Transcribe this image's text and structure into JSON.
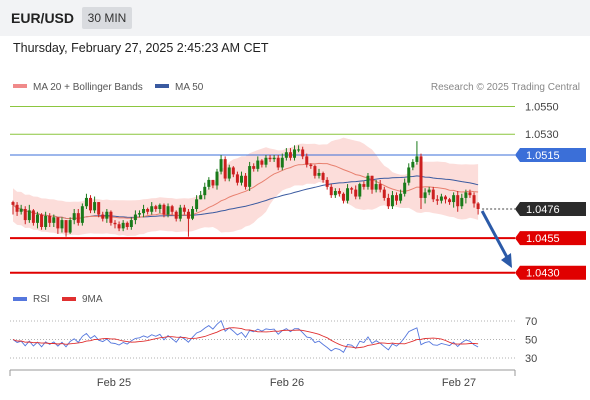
{
  "header": {
    "symbol": "EUR/USD",
    "timeframe": "30 MIN",
    "datetime": "Thursday, February 27, 2025 2:45:23 AM CET"
  },
  "legend": {
    "ma20_label": "MA 20 + Bollinger Bands",
    "ma50_label": "MA 50",
    "credit": "Research © 2025 Trading Central",
    "rsi_label": "RSI",
    "ma9_label": "9MA"
  },
  "colors": {
    "candle_up": "#1a7a1a",
    "candle_down": "#cc1f1f",
    "ma20": "#e8806f",
    "ma50": "#3a5aa0",
    "bollinger_fill": "#fbd7d4",
    "resistance": "#8cc63f",
    "pivot": "#3b6fd8",
    "support": "#e00000",
    "current": "#2b2b2b",
    "rsi": "#5577dd",
    "rsi_ma": "#e03030"
  },
  "chart_data": {
    "type": "candlestick",
    "price_levels": [
      {
        "label": "1.0550",
        "value": 1.055,
        "kind": "resistance"
      },
      {
        "label": "1.0530",
        "value": 1.053,
        "kind": "resistance"
      },
      {
        "label": "1.0515",
        "value": 1.0515,
        "kind": "pivot"
      },
      {
        "label": "1.0476",
        "value": 1.0476,
        "kind": "current"
      },
      {
        "label": "1.0455",
        "value": 1.0455,
        "kind": "support"
      },
      {
        "label": "1.0430",
        "value": 1.043,
        "kind": "support"
      }
    ],
    "x_ticks": [
      "Feb 25",
      "Feb 26",
      "Feb 27"
    ],
    "closes": [
      1.0479,
      1.0474,
      1.0476,
      1.0468,
      1.0475,
      1.0466,
      1.0472,
      1.0463,
      1.0471,
      1.0466,
      1.047,
      1.0462,
      1.0468,
      1.0459,
      1.0468,
      1.0473,
      1.0466,
      1.0478,
      1.0484,
      1.0475,
      1.0481,
      1.0472,
      1.0469,
      1.0474,
      1.0466,
      1.0465,
      1.0462,
      1.0466,
      1.0463,
      1.0468,
      1.0472,
      1.0473,
      1.0476,
      1.0474,
      1.0478,
      1.0476,
      1.0479,
      1.0472,
      1.0478,
      1.0474,
      1.0469,
      1.0477,
      1.0474,
      1.0469,
      1.0476,
      1.0483,
      1.0486,
      1.0492,
      1.0497,
      1.0493,
      1.0503,
      1.0512,
      1.0498,
      1.0506,
      1.0501,
      1.0495,
      1.05,
      1.0492,
      1.0507,
      1.0505,
      1.0511,
      1.0508,
      1.0513,
      1.0512,
      1.0513,
      1.0506,
      1.0513,
      1.0517,
      1.0513,
      1.0519,
      1.0519,
      1.0514,
      1.0508,
      1.0507,
      1.05,
      1.0502,
      1.0497,
      1.0492,
      1.0486,
      1.0489,
      1.0487,
      1.0482,
      1.0491,
      1.049,
      1.0485,
      1.0494,
      1.0492,
      1.05,
      1.049,
      1.0494,
      1.049,
      1.0484,
      1.0478,
      1.0486,
      1.0482,
      1.0487,
      1.0495,
      1.0506,
      1.051,
      1.0514,
      1.0484,
      1.0488,
      1.049,
      1.0483,
      1.0482,
      1.0485,
      1.0483,
      1.0481,
      1.0486,
      1.0478,
      1.0484,
      1.0488,
      1.0486,
      1.048,
      1.0476
    ],
    "highs": [
      1.0482,
      1.0481,
      1.0479,
      1.0478,
      1.0479,
      1.0476,
      1.0474,
      1.0473,
      1.0474,
      1.0473,
      1.0472,
      1.047,
      1.047,
      1.0467,
      1.047,
      1.0476,
      1.0476,
      1.048,
      1.0487,
      1.0486,
      1.0485,
      1.0481,
      1.0474,
      1.0476,
      1.0475,
      1.0468,
      1.0467,
      1.0468,
      1.0467,
      1.047,
      1.0475,
      1.0475,
      1.0479,
      1.0477,
      1.0481,
      1.0479,
      1.048,
      1.048,
      1.048,
      1.0479,
      1.0475,
      1.0479,
      1.0479,
      1.0476,
      1.0478,
      1.0486,
      1.0489,
      1.0495,
      1.0499,
      1.0497,
      1.0505,
      1.0515,
      1.0514,
      1.0508,
      1.0507,
      1.0503,
      1.0503,
      1.0502,
      1.051,
      1.0509,
      1.0514,
      1.0512,
      1.0515,
      1.0515,
      1.0515,
      1.0515,
      1.0516,
      1.052,
      1.052,
      1.0522,
      1.0522,
      1.0521,
      1.0516,
      1.0509,
      1.0508,
      1.0505,
      1.0503,
      1.0499,
      1.0494,
      1.0491,
      1.0491,
      1.0488,
      1.0494,
      1.0492,
      1.0493,
      1.0495,
      1.0496,
      1.0502,
      1.05,
      1.0497,
      1.0497,
      1.0492,
      1.0487,
      1.0489,
      1.0488,
      1.049,
      1.0498,
      1.0509,
      1.0512,
      1.0525,
      1.0516,
      1.0491,
      1.0492,
      1.0492,
      1.0486,
      1.0487,
      1.0486,
      1.0484,
      1.0488,
      1.0489,
      1.0487,
      1.049,
      1.049,
      1.0488,
      1.0481
    ],
    "lows": [
      1.0472,
      1.0471,
      1.0472,
      1.0465,
      1.0466,
      1.0464,
      1.0462,
      1.0461,
      1.0461,
      1.0463,
      1.0463,
      1.0458,
      1.0459,
      1.0456,
      1.0458,
      1.0465,
      1.0464,
      1.0464,
      1.0476,
      1.0473,
      1.0473,
      1.047,
      1.0467,
      1.0466,
      1.0464,
      1.0462,
      1.046,
      1.046,
      1.0461,
      1.0461,
      1.0465,
      1.047,
      1.047,
      1.0472,
      1.0472,
      1.0474,
      1.0473,
      1.047,
      1.047,
      1.0472,
      1.0467,
      1.0467,
      1.0472,
      1.0456,
      1.0468,
      1.0474,
      1.0483,
      1.0483,
      1.049,
      1.0491,
      1.049,
      1.0501,
      1.0496,
      1.0496,
      1.0499,
      1.0493,
      1.0493,
      1.049,
      1.0489,
      1.0503,
      1.0503,
      1.0506,
      1.0506,
      1.051,
      1.051,
      1.0504,
      1.0504,
      1.0511,
      1.0511,
      1.0511,
      1.0517,
      1.0512,
      1.0506,
      1.0505,
      1.0498,
      1.0498,
      1.0495,
      1.049,
      1.0484,
      1.0484,
      1.0485,
      1.048,
      1.048,
      1.0487,
      1.0483,
      1.0483,
      1.049,
      1.049,
      1.0487,
      1.0488,
      1.0488,
      1.0482,
      1.0476,
      1.0476,
      1.0479,
      1.048,
      1.0485,
      1.0493,
      1.0504,
      1.0508,
      1.0476,
      1.048,
      1.0486,
      1.0481,
      1.0479,
      1.048,
      1.048,
      1.0479,
      1.0477,
      1.0474,
      1.0476,
      1.048,
      1.0484,
      1.0477,
      1.0472
    ],
    "rsi_axis_ticks": [
      70,
      50,
      30
    ]
  }
}
